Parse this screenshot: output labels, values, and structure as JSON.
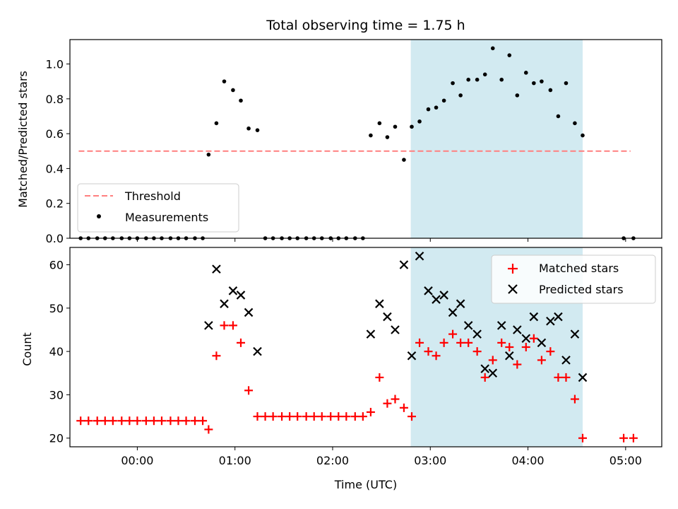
{
  "title": "Total observing time = 1.75 h",
  "colors": {
    "threshold": "#ff7f7f",
    "measurements": "#000000",
    "matched": "#ff0000",
    "predicted": "#000000",
    "observing_window": "#add8e6"
  },
  "chart_data": [
    {
      "type": "scatter",
      "panel": "top",
      "ylabel": "Matched/Predicted stars",
      "xlim": [
        -0.69,
        5.37
      ],
      "ylim": [
        0,
        1.14
      ],
      "yticks": [
        0.0,
        0.2,
        0.4,
        0.6,
        0.8,
        1.0
      ],
      "ytick_labels": [
        "0.0",
        "0.2",
        "0.4",
        "0.6",
        "0.8",
        "1.0"
      ],
      "observing_window": [
        2.8,
        4.56
      ],
      "legend": {
        "placement": "lower-left",
        "entries": [
          "Threshold",
          "Measurements"
        ]
      },
      "threshold": {
        "name": "Threshold",
        "y": 0.5,
        "x": [
          -0.6,
          5.05
        ],
        "style": "dashed"
      },
      "measurements": {
        "name": "Measurements",
        "x": [
          -0.58,
          -0.5,
          -0.41,
          -0.33,
          -0.25,
          -0.16,
          -0.08,
          0.0,
          0.09,
          0.17,
          0.25,
          0.34,
          0.42,
          0.5,
          0.59,
          0.67,
          0.73,
          0.81,
          0.89,
          0.98,
          1.06,
          1.14,
          1.23,
          1.31,
          1.39,
          1.48,
          1.56,
          1.64,
          1.73,
          1.81,
          1.89,
          1.98,
          2.06,
          2.14,
          2.23,
          2.31,
          2.39,
          2.48,
          2.56,
          2.64,
          2.73,
          2.81,
          2.89,
          2.98,
          3.06,
          3.14,
          3.23,
          3.31,
          3.39,
          3.48,
          3.56,
          3.64,
          3.73,
          3.81,
          3.89,
          3.98,
          4.06,
          4.14,
          4.23,
          4.31,
          4.39,
          4.48,
          4.56,
          4.98,
          5.08
        ],
        "y": [
          0,
          0,
          0,
          0,
          0,
          0,
          0,
          0,
          0,
          0,
          0,
          0,
          0,
          0,
          0,
          0,
          0.48,
          0.66,
          0.9,
          0.85,
          0.79,
          0.63,
          0.62,
          0,
          0,
          0,
          0,
          0,
          0,
          0,
          0,
          0,
          0,
          0,
          0,
          0,
          0.59,
          0.66,
          0.58,
          0.64,
          0.45,
          0.64,
          0.67,
          0.74,
          0.75,
          0.79,
          0.89,
          0.82,
          0.91,
          0.91,
          0.94,
          1.09,
          0.91,
          1.05,
          0.82,
          0.95,
          0.89,
          0.9,
          0.85,
          0.7,
          0.89,
          0.66,
          0.59,
          0,
          0
        ]
      }
    },
    {
      "type": "scatter",
      "panel": "bottom",
      "xlabel": "Time (UTC)",
      "ylabel": "Count",
      "xlim": [
        -0.69,
        5.37
      ],
      "ylim": [
        18,
        64
      ],
      "yticks": [
        20,
        30,
        40,
        50,
        60
      ],
      "ytick_labels": [
        "20",
        "30",
        "40",
        "50",
        "60"
      ],
      "xticks": [
        0,
        1,
        2,
        3,
        4,
        5
      ],
      "xtick_labels": [
        "00:00",
        "01:00",
        "02:00",
        "03:00",
        "04:00",
        "05:00"
      ],
      "observing_window": [
        2.8,
        4.56
      ],
      "legend": {
        "placement": "top-right",
        "entries": [
          "Matched stars",
          "Predicted stars"
        ]
      },
      "series": [
        {
          "name": "Matched stars",
          "marker": "plus",
          "x": [
            -0.58,
            -0.5,
            -0.41,
            -0.33,
            -0.25,
            -0.16,
            -0.08,
            0.0,
            0.09,
            0.17,
            0.25,
            0.34,
            0.42,
            0.5,
            0.59,
            0.67,
            0.73,
            0.81,
            0.89,
            0.98,
            1.06,
            1.14,
            1.23,
            1.31,
            1.39,
            1.48,
            1.56,
            1.64,
            1.73,
            1.81,
            1.89,
            1.98,
            2.06,
            2.14,
            2.23,
            2.31,
            2.39,
            2.48,
            2.56,
            2.64,
            2.73,
            2.81,
            2.89,
            2.98,
            3.06,
            3.14,
            3.23,
            3.31,
            3.39,
            3.48,
            3.56,
            3.64,
            3.73,
            3.81,
            3.89,
            3.98,
            4.06,
            4.14,
            4.23,
            4.31,
            4.39,
            4.48,
            4.56,
            4.98,
            5.08
          ],
          "y": [
            24,
            24,
            24,
            24,
            24,
            24,
            24,
            24,
            24,
            24,
            24,
            24,
            24,
            24,
            24,
            24,
            22,
            39,
            46,
            46,
            42,
            31,
            25,
            25,
            25,
            25,
            25,
            25,
            25,
            25,
            25,
            25,
            25,
            25,
            25,
            25,
            26,
            34,
            28,
            29,
            27,
            25,
            42,
            40,
            39,
            42,
            44,
            42,
            42,
            40,
            34,
            38,
            42,
            41,
            37,
            41,
            43,
            38,
            40,
            34,
            34,
            29,
            20,
            20,
            20
          ]
        },
        {
          "name": "Predicted stars",
          "marker": "x",
          "x": [
            0.73,
            0.81,
            0.89,
            0.98,
            1.06,
            1.14,
            1.23,
            2.39,
            2.48,
            2.56,
            2.64,
            2.73,
            2.81,
            2.89,
            2.98,
            3.06,
            3.14,
            3.23,
            3.31,
            3.39,
            3.48,
            3.56,
            3.64,
            3.73,
            3.81,
            3.89,
            3.98,
            4.06,
            4.14,
            4.23,
            4.31,
            4.39,
            4.48,
            4.56
          ],
          "y": [
            46,
            59,
            51,
            54,
            53,
            49,
            40,
            44,
            51,
            48,
            45,
            60,
            39,
            62,
            54,
            52,
            53,
            49,
            51,
            46,
            44,
            36,
            35,
            46,
            39,
            45,
            43,
            48,
            42,
            47,
            48,
            38,
            44,
            34
          ]
        }
      ]
    }
  ]
}
